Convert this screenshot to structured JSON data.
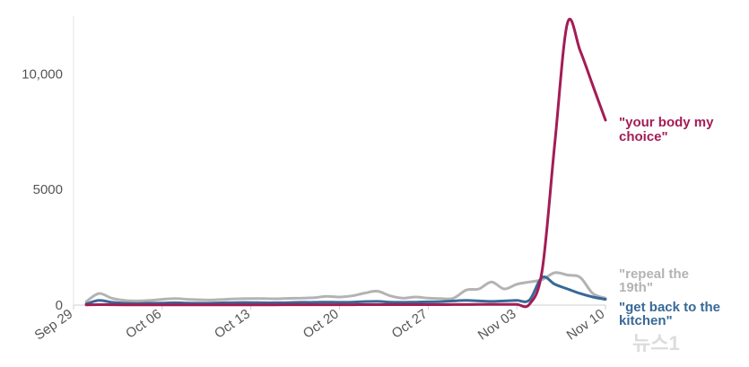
{
  "chart_data": {
    "type": "line",
    "x": [
      "Sep 29",
      "Sep 30",
      "Oct 01",
      "Oct 02",
      "Oct 03",
      "Oct 04",
      "Oct 05",
      "Oct 06",
      "Oct 07",
      "Oct 08",
      "Oct 09",
      "Oct 10",
      "Oct 11",
      "Oct 12",
      "Oct 13",
      "Oct 14",
      "Oct 15",
      "Oct 16",
      "Oct 17",
      "Oct 18",
      "Oct 19",
      "Oct 20",
      "Oct 21",
      "Oct 22",
      "Oct 23",
      "Oct 24",
      "Oct 25",
      "Oct 26",
      "Oct 27",
      "Oct 28",
      "Oct 29",
      "Oct 30",
      "Oct 31",
      "Nov 01",
      "Nov 02",
      "Nov 03",
      "Nov 04",
      "Nov 05",
      "Nov 06",
      "Nov 07",
      "Nov 08",
      "Nov 09",
      "Nov 10"
    ],
    "x_ticks": [
      "Sep 29",
      "Oct 06",
      "Oct 13",
      "Oct 20",
      "Oct 27",
      "Nov 03",
      "Nov 10"
    ],
    "y_ticks": [
      0,
      5000,
      10000
    ],
    "y_tick_labels": [
      "0",
      "5000",
      "10,000"
    ],
    "ylim": [
      0,
      12500
    ],
    "title": "",
    "xlabel": "",
    "ylabel": "",
    "legend": "direct labels at line ends",
    "series": [
      {
        "name": "\"repeal the 19th\"",
        "color": "#b3b3b3",
        "values": [
          null,
          150,
          500,
          300,
          200,
          180,
          200,
          250,
          280,
          250,
          230,
          220,
          250,
          270,
          280,
          280,
          270,
          290,
          300,
          320,
          380,
          350,
          400,
          520,
          600,
          400,
          300,
          350,
          300,
          280,
          300,
          650,
          700,
          1000,
          700,
          900,
          1000,
          1100,
          1400,
          1300,
          1200,
          500,
          300
        ]
      },
      {
        "name": "\"get back to the kitchen\"",
        "color": "#386896",
        "values": [
          null,
          50,
          200,
          120,
          80,
          70,
          80,
          90,
          100,
          90,
          80,
          90,
          100,
          110,
          110,
          100,
          100,
          110,
          120,
          120,
          130,
          120,
          130,
          150,
          160,
          130,
          120,
          130,
          140,
          150,
          180,
          200,
          180,
          160,
          180,
          200,
          220,
          1200,
          900,
          700,
          500,
          350,
          250
        ]
      },
      {
        "name": "\"your body my choice\"",
        "color": "#a31c56",
        "values": [
          null,
          10,
          20,
          15,
          10,
          10,
          10,
          10,
          12,
          12,
          10,
          10,
          12,
          12,
          12,
          12,
          12,
          15,
          15,
          15,
          15,
          15,
          15,
          20,
          20,
          20,
          20,
          20,
          20,
          20,
          25,
          25,
          30,
          30,
          30,
          30,
          40,
          1500,
          7000,
          12200,
          11000,
          9500,
          8000
        ]
      }
    ]
  },
  "labels": {
    "series1_line1": "\"repeal the",
    "series1_line2": "19th\"",
    "series2_line1": "\"get back to the",
    "series2_line2": "kitchen\"",
    "series3_line1": "\"your body my",
    "series3_line2": "choice\""
  },
  "watermark": "뉴스1"
}
